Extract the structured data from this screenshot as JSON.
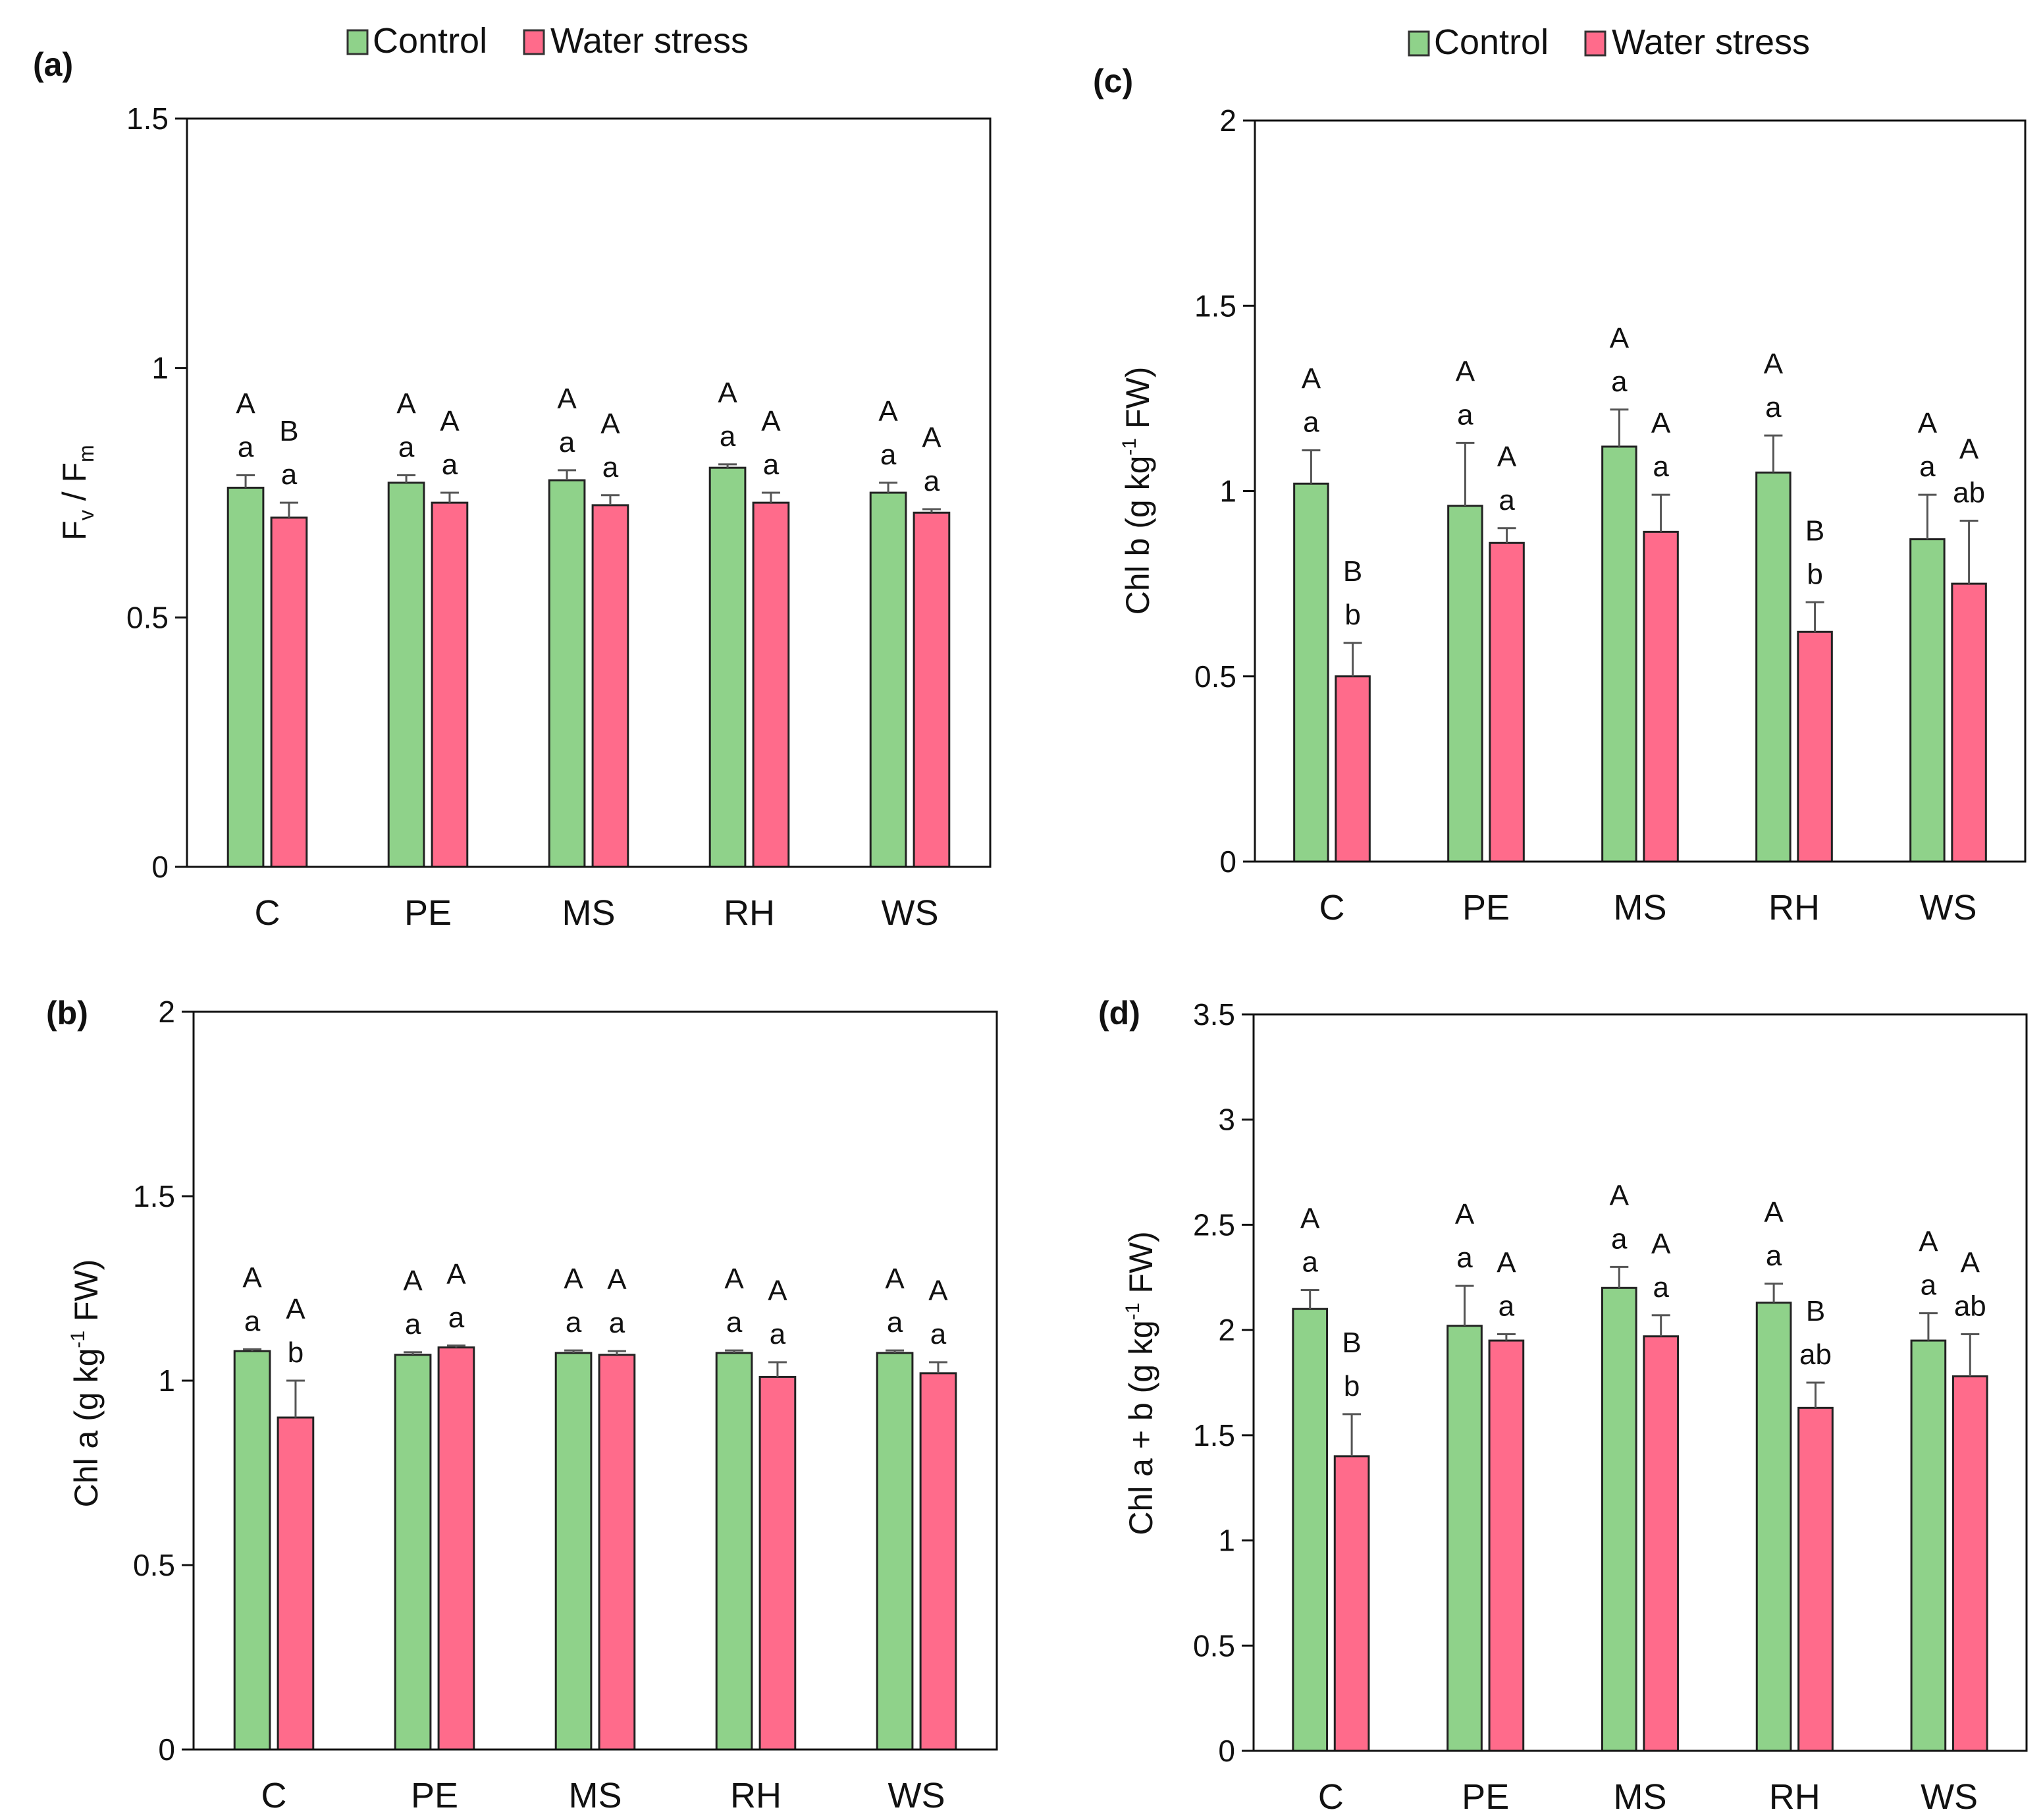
{
  "legend": {
    "series": [
      {
        "name": "Control",
        "color": "#8fd28a"
      },
      {
        "name": "Water stress",
        "color": "#ff6b8b"
      }
    ]
  },
  "chart_data": [
    {
      "id": "a",
      "panel_label": "(a)",
      "type": "bar",
      "ylabel_main": "F",
      "ylabel_sub1": "v",
      "ylabel_mid": " / F",
      "ylabel_sub2": "m",
      "ylim": [
        0,
        1.5
      ],
      "yticks": [
        "0",
        "0.5",
        "1",
        "1.5"
      ],
      "ytick_values": [
        0,
        0.5,
        1,
        1.5
      ],
      "categories": [
        "C",
        "PE",
        "MS",
        "RH",
        "WS"
      ],
      "series": [
        {
          "name": "Control",
          "values": [
            0.76,
            0.77,
            0.775,
            0.8,
            0.75
          ],
          "errors": [
            0.025,
            0.015,
            0.02,
            0.007,
            0.02
          ],
          "sig_upper": [
            "A",
            "A",
            "A",
            "A",
            "A"
          ],
          "sig_lower": [
            "a",
            "a",
            "a",
            "a",
            "a"
          ]
        },
        {
          "name": "Water stress",
          "values": [
            0.7,
            0.73,
            0.725,
            0.73,
            0.71
          ],
          "errors": [
            0.03,
            0.02,
            0.02,
            0.02,
            0.007
          ],
          "sig_upper": [
            "B",
            "A",
            "A",
            "A",
            "A"
          ],
          "sig_lower": [
            "a",
            "a",
            "a",
            "a",
            "a"
          ]
        }
      ]
    },
    {
      "id": "b",
      "panel_label": "(b)",
      "type": "bar",
      "ylabel_main": "Chl a (g kg",
      "ylabel_sup": "-1",
      "ylabel_end": " FW)",
      "ylim": [
        0,
        2
      ],
      "yticks": [
        "0",
        "0.5",
        "1",
        "1.5",
        "2"
      ],
      "ytick_values": [
        0,
        0.5,
        1,
        1.5,
        2
      ],
      "categories": [
        "C",
        "PE",
        "MS",
        "RH",
        "WS"
      ],
      "series": [
        {
          "name": "Control",
          "values": [
            1.08,
            1.07,
            1.075,
            1.075,
            1.075
          ],
          "errors": [
            0.005,
            0.007,
            0.007,
            0.007,
            0.007
          ],
          "sig_upper": [
            "A",
            "A",
            "A",
            "A",
            "A"
          ],
          "sig_lower": [
            "a",
            "a",
            "a",
            "a",
            "a"
          ]
        },
        {
          "name": "Water stress",
          "values": [
            0.9,
            1.09,
            1.07,
            1.01,
            1.02
          ],
          "errors": [
            0.1,
            0.005,
            0.01,
            0.04,
            0.03
          ],
          "sig_upper": [
            "A",
            "A",
            "A",
            "A",
            "A"
          ],
          "sig_lower": [
            "b",
            "a",
            "a",
            "a",
            "a"
          ]
        }
      ]
    },
    {
      "id": "c",
      "panel_label": "(c)",
      "type": "bar",
      "ylabel_main": "Chl b (g kg",
      "ylabel_sup": "-1",
      "ylabel_end": " FW)",
      "ylim": [
        0,
        2
      ],
      "yticks": [
        "0",
        "0.5",
        "1",
        "1.5",
        "2"
      ],
      "ytick_values": [
        0,
        0.5,
        1,
        1.5,
        2
      ],
      "categories": [
        "C",
        "PE",
        "MS",
        "RH",
        "WS"
      ],
      "series": [
        {
          "name": "Control",
          "values": [
            1.02,
            0.96,
            1.12,
            1.05,
            0.87
          ],
          "errors": [
            0.09,
            0.17,
            0.1,
            0.1,
            0.12
          ],
          "sig_upper": [
            "A",
            "A",
            "A",
            "A",
            "A"
          ],
          "sig_lower": [
            "a",
            "a",
            "a",
            "a",
            "a"
          ]
        },
        {
          "name": "Water stress",
          "values": [
            0.5,
            0.86,
            0.89,
            0.62,
            0.75
          ],
          "errors": [
            0.09,
            0.04,
            0.1,
            0.08,
            0.17
          ],
          "sig_upper": [
            "B",
            "A",
            "A",
            "B",
            "A"
          ],
          "sig_lower": [
            "b",
            "a",
            "a",
            "b",
            "ab"
          ]
        }
      ]
    },
    {
      "id": "d",
      "panel_label": "(d)",
      "type": "bar",
      "ylabel_main": "Chl a + b (g kg",
      "ylabel_sup": "-1",
      "ylabel_end": "  FW)",
      "ylim": [
        0,
        3.5
      ],
      "yticks": [
        "0",
        "0.5",
        "1",
        "1.5",
        "2",
        "2.5",
        "3",
        "3.5"
      ],
      "ytick_values": [
        0,
        0.5,
        1,
        1.5,
        2,
        2.5,
        3,
        3.5
      ],
      "categories": [
        "C",
        "PE",
        "MS",
        "RH",
        "WS"
      ],
      "series": [
        {
          "name": "Control",
          "values": [
            2.1,
            2.02,
            2.2,
            2.13,
            1.95
          ],
          "errors": [
            0.09,
            0.19,
            0.1,
            0.09,
            0.13
          ],
          "sig_upper": [
            "A",
            "A",
            "A",
            "A",
            "A"
          ],
          "sig_lower": [
            "a",
            "a",
            "a",
            "a",
            "a"
          ]
        },
        {
          "name": "Water stress",
          "values": [
            1.4,
            1.95,
            1.97,
            1.63,
            1.78
          ],
          "errors": [
            0.2,
            0.03,
            0.1,
            0.12,
            0.2
          ],
          "sig_upper": [
            "B",
            "A",
            "A",
            "B",
            "A"
          ],
          "sig_lower": [
            "b",
            "a",
            "a",
            "ab",
            "ab"
          ]
        }
      ]
    }
  ]
}
